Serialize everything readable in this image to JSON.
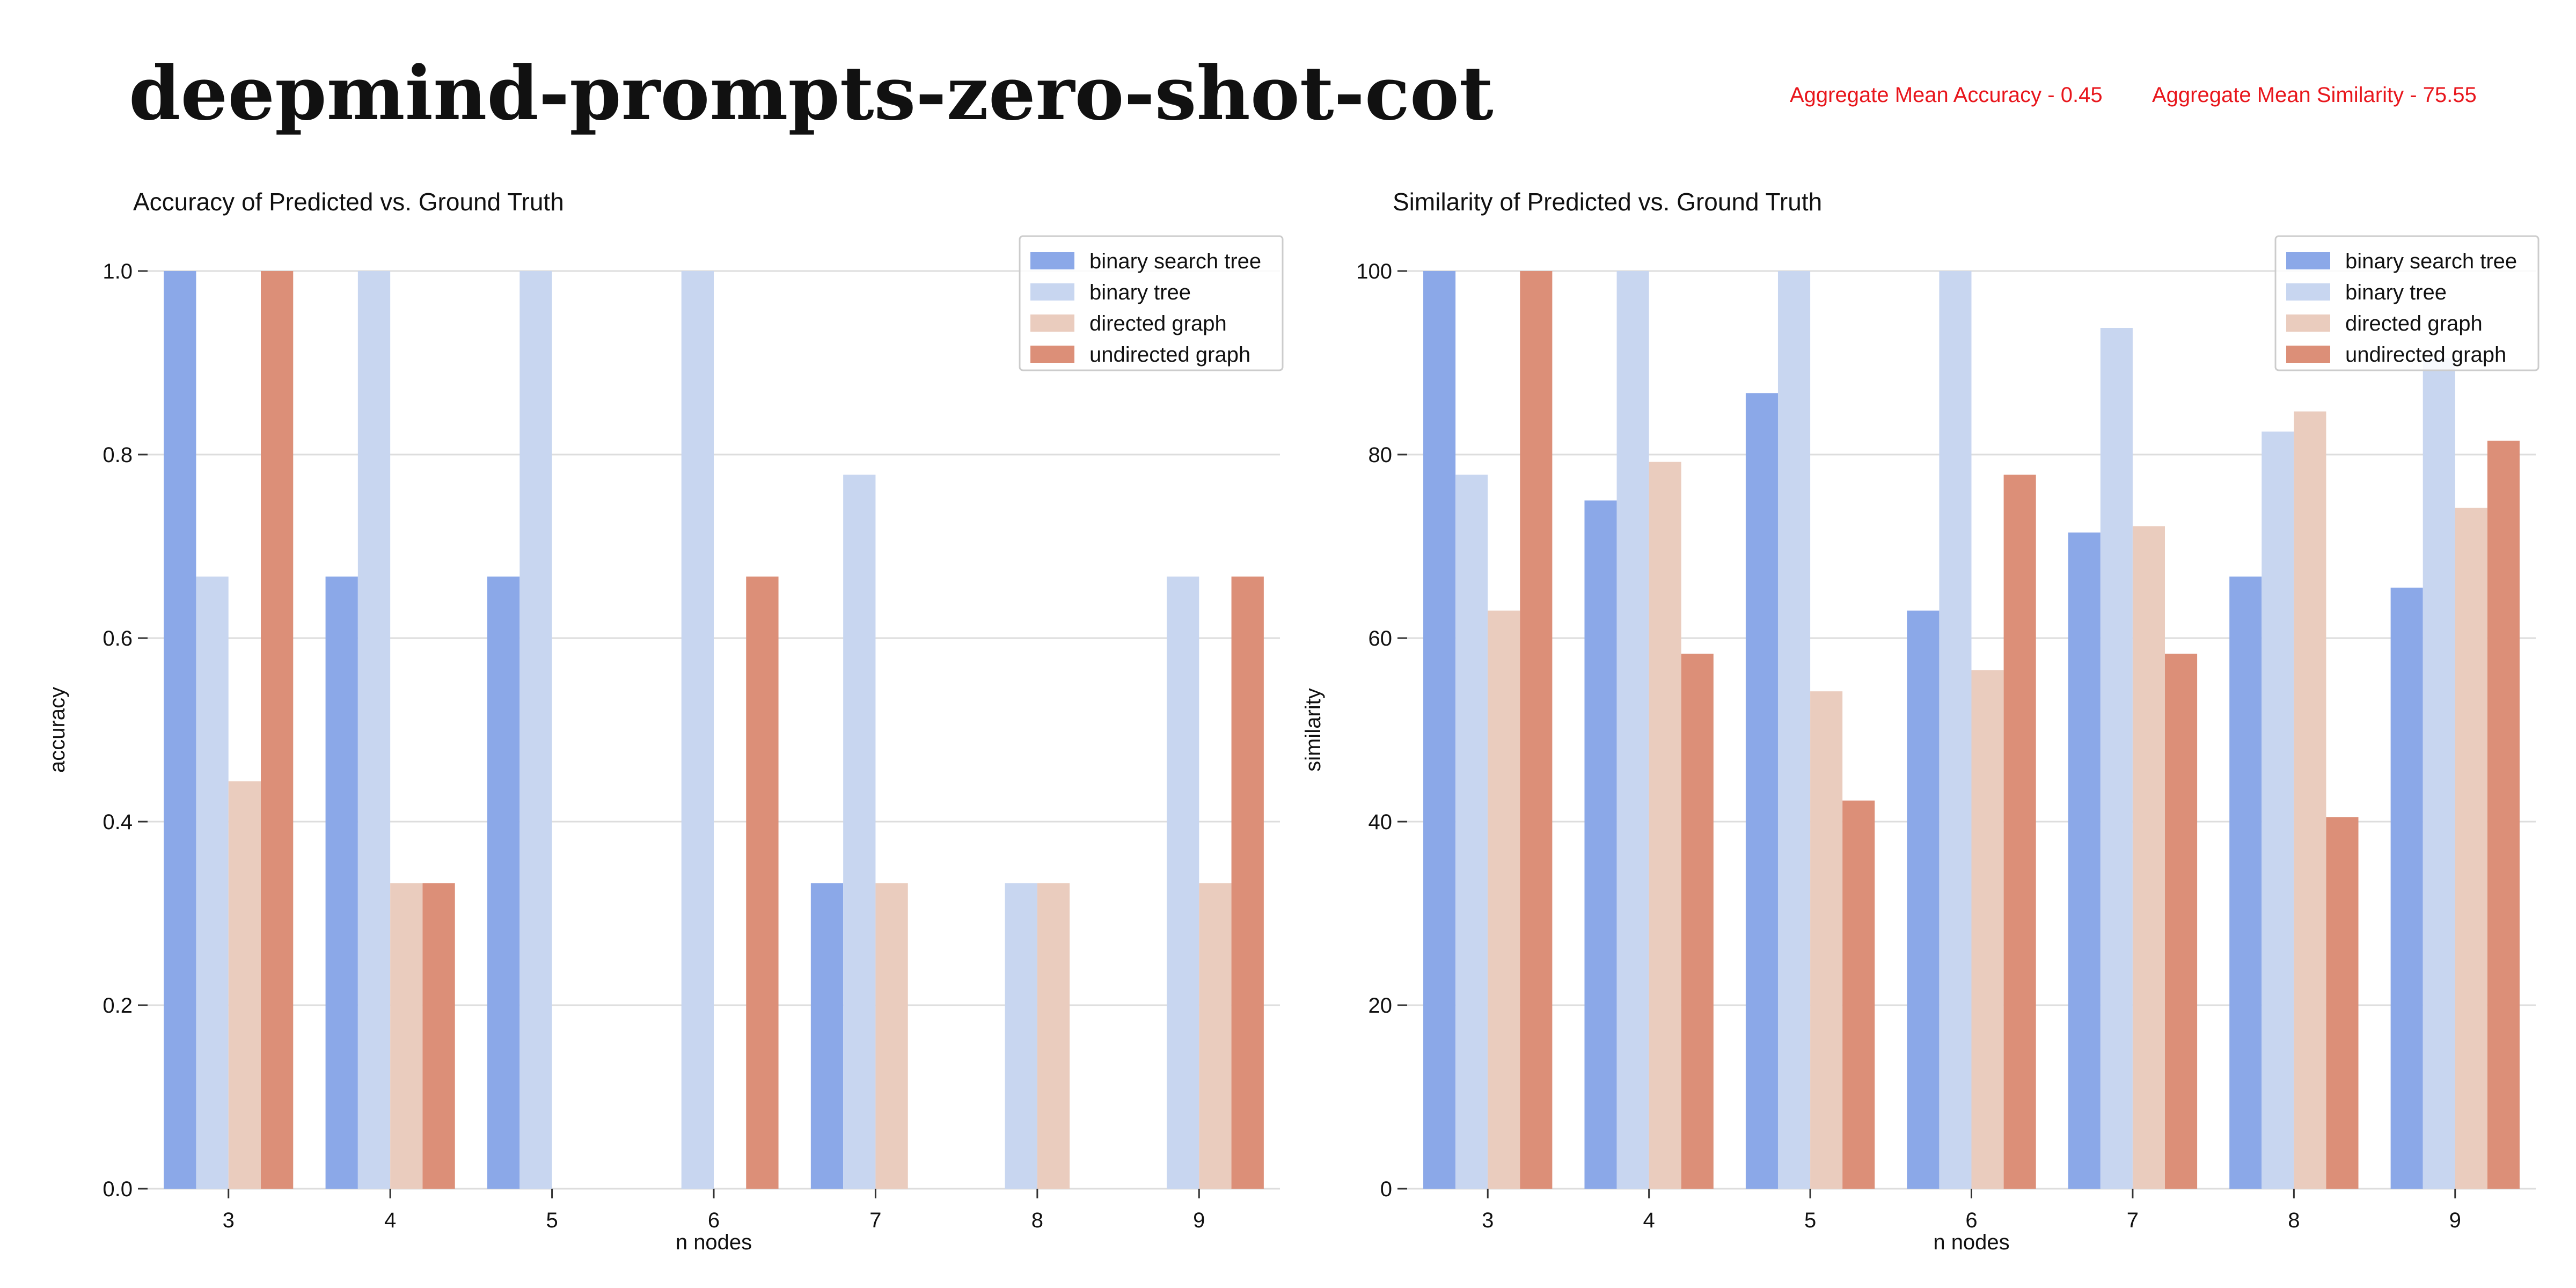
{
  "page": {
    "title": "deepmind-prompts-zero-shot-cot",
    "aggregates": [
      {
        "label": "Aggregate Mean Accuracy - 0.45"
      },
      {
        "label": "Aggregate Mean Similarity - 75.55"
      }
    ],
    "aggregate_color": "#e8161c"
  },
  "chart_data": [
    {
      "type": "bar",
      "title": "Accuracy of Predicted vs. Ground Truth",
      "xlabel": "n nodes",
      "ylabel": "accuracy",
      "ylim": [
        0,
        1
      ],
      "yticks": [
        0,
        0.2,
        0.4,
        0.6,
        0.8,
        1.0
      ],
      "ytick_labels": [
        "0.0",
        "0.2",
        "0.4",
        "0.6",
        "0.8",
        "1.0"
      ],
      "categories": [
        "3",
        "4",
        "5",
        "6",
        "7",
        "8",
        "9"
      ],
      "grid": true,
      "legend_position": "top-right",
      "series": [
        {
          "name": "binary search tree",
          "color": "#8ba8e8",
          "values": [
            1.0,
            0.667,
            0.667,
            0,
            0.333,
            0,
            0
          ]
        },
        {
          "name": "binary tree",
          "color": "#c8d6f0",
          "values": [
            0.667,
            1.0,
            1.0,
            1.0,
            0.778,
            0.333,
            0.667
          ]
        },
        {
          "name": "directed graph",
          "color": "#eaccbe",
          "values": [
            0.444,
            0.333,
            0,
            0,
            0.333,
            0.333,
            0.333
          ]
        },
        {
          "name": "undirected graph",
          "color": "#dc8f78",
          "values": [
            1.0,
            0.333,
            0,
            0.667,
            0,
            0,
            0.667
          ]
        }
      ]
    },
    {
      "type": "bar",
      "title": "Similarity of Predicted vs. Ground Truth",
      "xlabel": "n nodes",
      "ylabel": "similarity",
      "ylim": [
        0,
        100
      ],
      "yticks": [
        0,
        20,
        40,
        60,
        80,
        100
      ],
      "ytick_labels": [
        "0",
        "20",
        "40",
        "60",
        "80",
        "100"
      ],
      "categories": [
        "3",
        "4",
        "5",
        "6",
        "7",
        "8",
        "9"
      ],
      "grid": true,
      "legend_position": "top-right",
      "series": [
        {
          "name": "binary search tree",
          "color": "#8ba8e8",
          "values": [
            100,
            75,
            86.7,
            63,
            71.5,
            66.7,
            65.5
          ]
        },
        {
          "name": "binary tree",
          "color": "#c8d6f0",
          "values": [
            77.8,
            100,
            100,
            100,
            93.8,
            82.5,
            90.5
          ]
        },
        {
          "name": "directed graph",
          "color": "#eaccbe",
          "values": [
            63,
            79.2,
            54.2,
            56.5,
            72.2,
            84.7,
            74.2
          ]
        },
        {
          "name": "undirected graph",
          "color": "#dc8f78",
          "values": [
            100,
            58.3,
            42.3,
            77.8,
            58.3,
            40.5,
            81.5
          ]
        }
      ]
    }
  ]
}
